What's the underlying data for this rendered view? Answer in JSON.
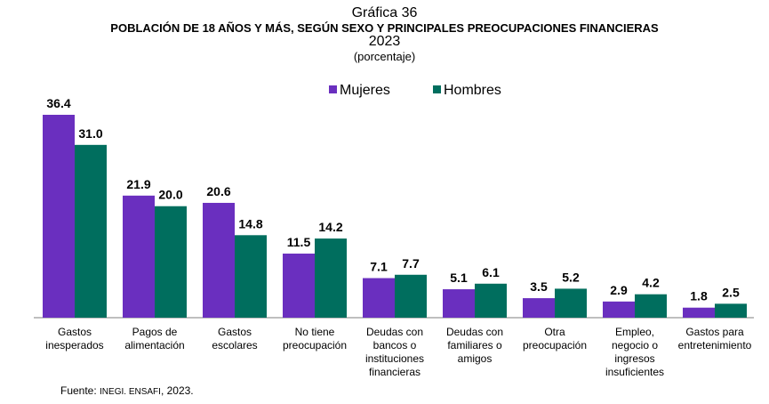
{
  "header": {
    "label": "Gráfica 36",
    "title": "POBLACIÓN DE 18 AÑOS Y MÁS, SEGÚN SEXO Y PRINCIPALES PREOCUPACIONES FINANCIERAS",
    "year": "2023",
    "unit": "(porcentaje)"
  },
  "source": {
    "prefix": "Fuente: ",
    "org": "INEGI. ENSAFI",
    "suffix": ", 2023."
  },
  "chart_data": {
    "type": "bar",
    "title": "POBLACIÓN DE 18 AÑOS Y MÁS, SEGÚN SEXO Y PRINCIPALES PREOCUPACIONES FINANCIERAS",
    "xlabel": "",
    "ylabel": "",
    "ylim": [
      0,
      40
    ],
    "grid": false,
    "legend": "top-center",
    "categories": [
      [
        "Gastos",
        "inesperados"
      ],
      [
        "Pagos de",
        "alimentación"
      ],
      [
        "Gastos",
        "escolares"
      ],
      [
        "No tiene",
        "preocupación"
      ],
      [
        "Deudas con",
        "bancos o",
        "instituciones",
        "financieras"
      ],
      [
        "Deudas con",
        "familiares o",
        "amigos"
      ],
      [
        "Otra",
        "preocupación"
      ],
      [
        "Empleo,",
        "negocio o",
        "ingresos",
        "insuficientes"
      ],
      [
        "Gastos para",
        "entretenimiento"
      ]
    ],
    "series": [
      {
        "name": "Mujeres",
        "color": "#6a2fbf",
        "values": [
          36.4,
          21.9,
          20.6,
          11.5,
          7.1,
          5.1,
          3.5,
          2.9,
          1.8
        ]
      },
      {
        "name": "Hombres",
        "color": "#006e5e",
        "values": [
          31.0,
          20.0,
          14.8,
          14.2,
          7.7,
          6.1,
          5.2,
          4.2,
          2.5
        ]
      }
    ]
  }
}
